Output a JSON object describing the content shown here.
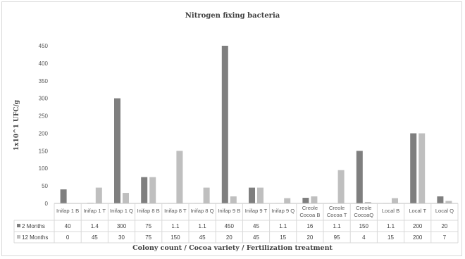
{
  "chart_data": {
    "type": "bar",
    "title": "Nitrogen fixing bacteria",
    "xlabel": "Colony count / Cocoa variety / Fertilization treatment",
    "ylabel": "1x10^1 UFC/g",
    "ylim": [
      0,
      450
    ],
    "yticks": [
      0,
      50,
      100,
      150,
      200,
      250,
      300,
      350,
      400,
      450
    ],
    "grid": false,
    "legend": "data-table-rows",
    "categories": [
      [
        "Inifap 1 B"
      ],
      [
        "Inifap 1 T"
      ],
      [
        "Inifap 1 Q"
      ],
      [
        "Inifap 8 B"
      ],
      [
        "Inifap 8 T"
      ],
      [
        "Inifap 8 Q"
      ],
      [
        "Inifap 9 B"
      ],
      [
        "Inifap 9 T"
      ],
      [
        "Inifap 9 Q"
      ],
      [
        "Creole",
        "Cocoa B"
      ],
      [
        "Creole",
        "Cocoa T"
      ],
      [
        "Creole",
        "CocoaQ"
      ],
      [
        "Local B"
      ],
      [
        "Local T"
      ],
      [
        "Local Q"
      ]
    ],
    "series": [
      {
        "name": "2 Months",
        "color": "#7f7f7f",
        "values": [
          40,
          1.4,
          300,
          75,
          1.1,
          1.1,
          450,
          45,
          1.1,
          16,
          1.1,
          150,
          1.1,
          200,
          20
        ]
      },
      {
        "name": "12 Months",
        "color": "#bfbfbf",
        "values": [
          0,
          45,
          30,
          75,
          150,
          45,
          20,
          45,
          15,
          20,
          95,
          4,
          15,
          200,
          7
        ]
      }
    ]
  }
}
